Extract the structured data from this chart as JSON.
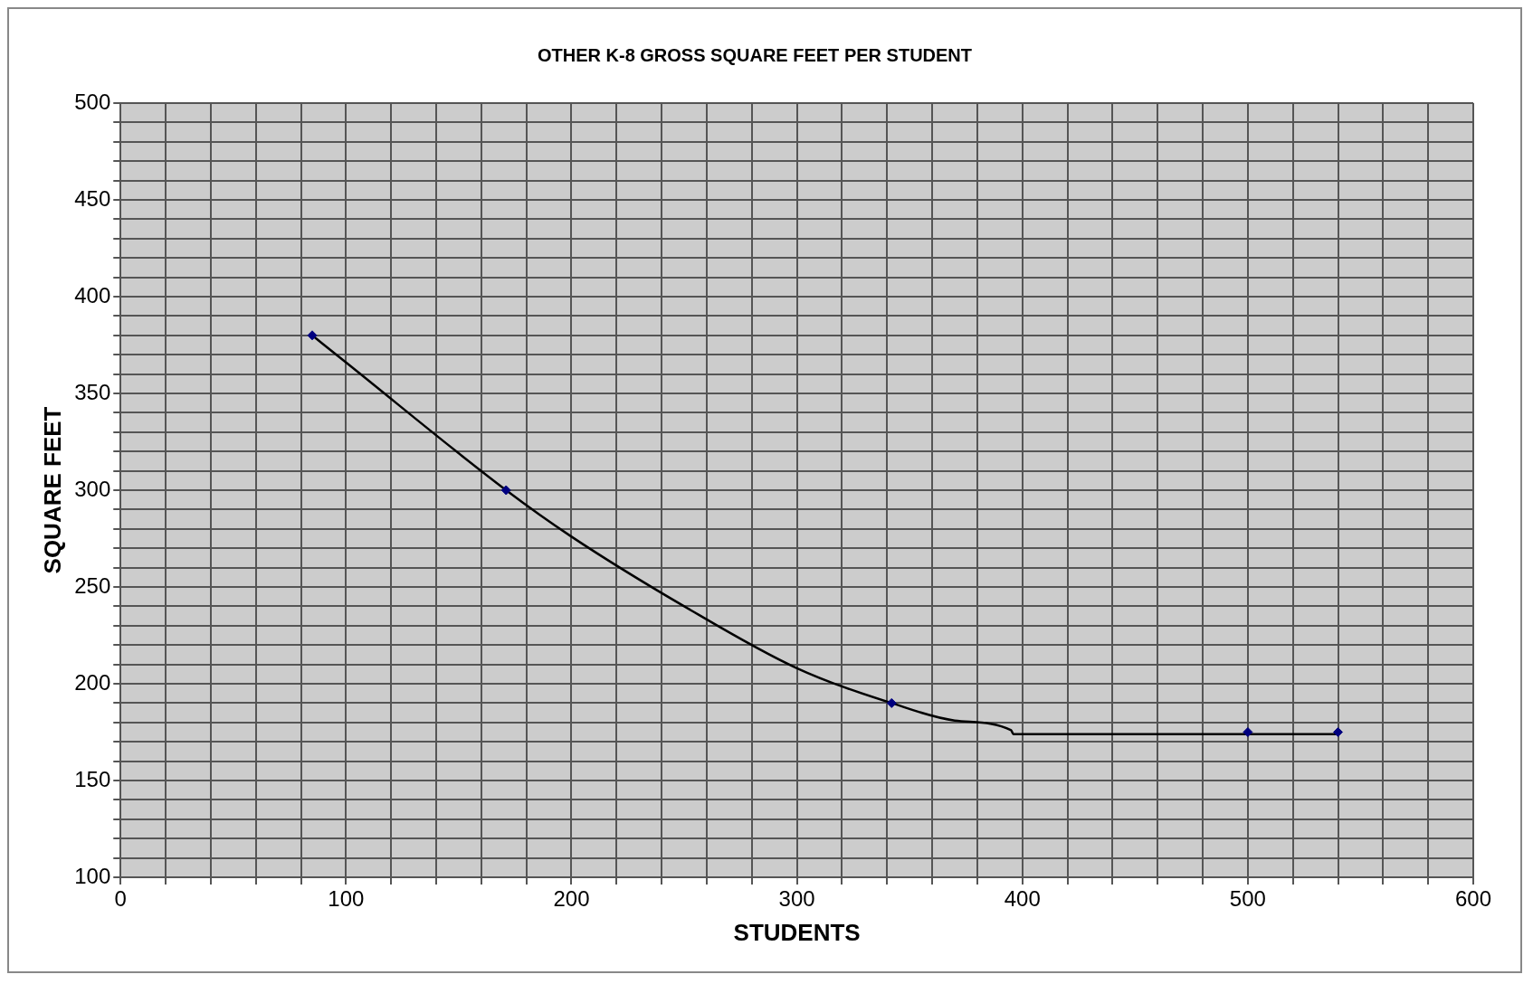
{
  "chart_data": {
    "type": "scatter",
    "title": "OTHER K-8 GROSS SQUARE FEET PER STUDENT",
    "xlabel": "STUDENTS",
    "ylabel": "SQUARE FEET",
    "series": [
      {
        "color": "#000080",
        "marker": "diamond",
        "x": [
          85,
          171,
          342,
          500,
          540
        ],
        "values": [
          380,
          300,
          190,
          175,
          175
        ]
      },
      {
        "type": "line",
        "color": "#000000",
        "marker": "none",
        "line_style": "solid",
        "x": [
          85,
          100,
          171,
          200,
          250,
          300,
          342,
          370,
          395,
          396,
          540
        ],
        "values": [
          380,
          366,
          300,
          276,
          240,
          208,
          190,
          181,
          176,
          174,
          174
        ]
      }
    ],
    "xlim": [
      0,
      600
    ],
    "xticks": [
      0,
      {
        "value": 20,
        "label": null
      },
      {
        "value": 40,
        "label": null
      },
      {
        "value": 60,
        "label": null
      },
      {
        "value": 80,
        "label": null
      },
      100,
      {
        "value": 120,
        "label": null
      },
      {
        "value": 140,
        "label": null
      },
      {
        "value": 160,
        "label": null
      },
      {
        "value": 180,
        "label": null
      },
      200,
      {
        "value": 220,
        "label": null
      },
      {
        "value": 240,
        "label": null
      },
      {
        "value": 260,
        "label": null
      },
      {
        "value": 280,
        "label": null
      },
      300,
      {
        "value": 320,
        "label": null
      },
      {
        "value": 340,
        "label": null
      },
      {
        "value": 360,
        "label": null
      },
      {
        "value": 380,
        "label": null
      },
      400,
      {
        "value": 420,
        "label": null
      },
      {
        "value": 440,
        "label": null
      },
      {
        "value": 460,
        "label": null
      },
      {
        "value": 480,
        "label": null
      },
      500,
      {
        "value": 520,
        "label": null
      },
      {
        "value": 540,
        "label": null
      },
      {
        "value": 560,
        "label": null
      },
      {
        "value": 580,
        "label": null
      },
      600
    ],
    "ylim": [
      100,
      500
    ],
    "yticks": [
      100,
      {
        "value": 110,
        "label": null
      },
      {
        "value": 120,
        "label": null
      },
      {
        "value": 130,
        "label": null
      },
      {
        "value": 140,
        "label": null
      },
      150,
      {
        "value": 160,
        "label": null
      },
      {
        "value": 170,
        "label": null
      },
      {
        "value": 180,
        "label": null
      },
      {
        "value": 190,
        "label": null
      },
      200,
      {
        "value": 210,
        "label": null
      },
      {
        "value": 220,
        "label": null
      },
      {
        "value": 230,
        "label": null
      },
      {
        "value": 240,
        "label": null
      },
      250,
      {
        "value": 260,
        "label": null
      },
      {
        "value": 270,
        "label": null
      },
      {
        "value": 280,
        "label": null
      },
      {
        "value": 290,
        "label": null
      },
      300,
      {
        "value": 310,
        "label": null
      },
      {
        "value": 320,
        "label": null
      },
      {
        "value": 330,
        "label": null
      },
      {
        "value": 340,
        "label": null
      },
      350,
      {
        "value": 360,
        "label": null
      },
      {
        "value": 370,
        "label": null
      },
      {
        "value": 380,
        "label": null
      },
      {
        "value": 390,
        "label": null
      },
      400,
      {
        "value": 410,
        "label": null
      },
      {
        "value": 420,
        "label": null
      },
      {
        "value": 430,
        "label": null
      },
      {
        "value": 440,
        "label": null
      },
      450,
      {
        "value": 460,
        "label": null
      },
      {
        "value": 470,
        "label": null
      },
      {
        "value": 480,
        "label": null
      },
      {
        "value": 490,
        "label": null
      },
      500
    ],
    "grid": true,
    "legend": false
  }
}
